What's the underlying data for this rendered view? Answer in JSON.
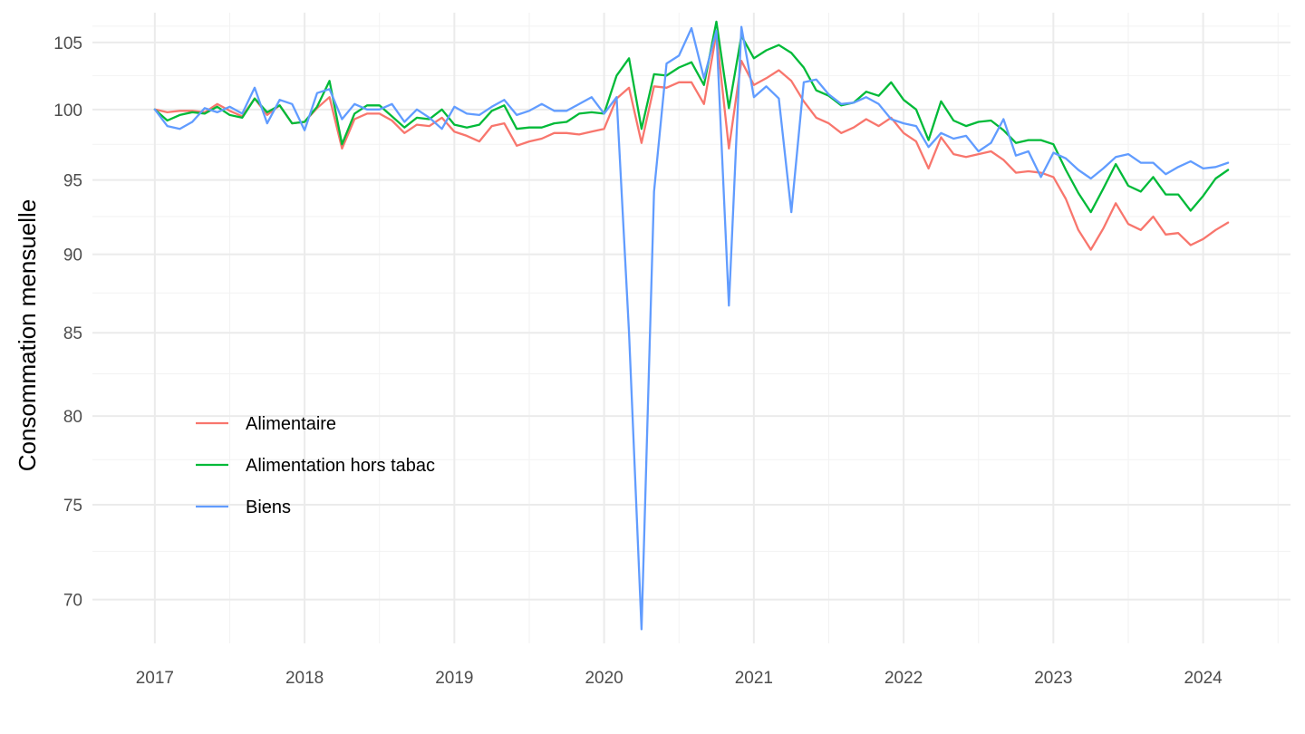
{
  "chart_data": {
    "type": "line",
    "ylabel": "Consommation mensuelle",
    "xlabel": "",
    "title": "",
    "y_scale": "log",
    "ylim": [
      67.8,
      107.3
    ],
    "xlim": [
      "2016-08",
      "2024-08"
    ],
    "y_ticks": [
      70,
      75,
      80,
      85,
      90,
      95,
      100,
      105
    ],
    "x_ticks": [
      "2017",
      "2018",
      "2019",
      "2020",
      "2021",
      "2022",
      "2023",
      "2024"
    ],
    "grid": true,
    "legend_position": "inside-left",
    "x": [
      "2017-01",
      "2017-02",
      "2017-03",
      "2017-04",
      "2017-05",
      "2017-06",
      "2017-07",
      "2017-08",
      "2017-09",
      "2017-10",
      "2017-11",
      "2017-12",
      "2018-01",
      "2018-02",
      "2018-03",
      "2018-04",
      "2018-05",
      "2018-06",
      "2018-07",
      "2018-08",
      "2018-09",
      "2018-10",
      "2018-11",
      "2018-12",
      "2019-01",
      "2019-02",
      "2019-03",
      "2019-04",
      "2019-05",
      "2019-06",
      "2019-07",
      "2019-08",
      "2019-09",
      "2019-10",
      "2019-11",
      "2019-12",
      "2020-01",
      "2020-02",
      "2020-03",
      "2020-04",
      "2020-05",
      "2020-06",
      "2020-07",
      "2020-08",
      "2020-09",
      "2020-10",
      "2020-11",
      "2020-12",
      "2021-01",
      "2021-02",
      "2021-03",
      "2021-04",
      "2021-05",
      "2021-06",
      "2021-07",
      "2021-08",
      "2021-09",
      "2021-10",
      "2021-11",
      "2021-12",
      "2022-01",
      "2022-02",
      "2022-03",
      "2022-04",
      "2022-05",
      "2022-06",
      "2022-07",
      "2022-08",
      "2022-09",
      "2022-10",
      "2022-11",
      "2022-12",
      "2023-01",
      "2023-02",
      "2023-03",
      "2023-04",
      "2023-05",
      "2023-06",
      "2023-07",
      "2023-08",
      "2023-09",
      "2023-10",
      "2023-11",
      "2023-12",
      "2024-01",
      "2024-02",
      "2024-03"
    ],
    "series": [
      {
        "name": "Alimentaire",
        "color": "#F8766D",
        "values": [
          100.0,
          99.8,
          99.9,
          99.9,
          99.8,
          100.4,
          99.9,
          99.5,
          100.8,
          99.6,
          100.3,
          99.0,
          99.1,
          100.1,
          100.9,
          97.2,
          99.3,
          99.7,
          99.7,
          99.2,
          98.3,
          98.9,
          98.8,
          99.4,
          98.4,
          98.1,
          97.7,
          98.8,
          99.0,
          97.4,
          97.7,
          97.9,
          98.3,
          98.3,
          98.2,
          98.4,
          98.6,
          100.8,
          101.6,
          97.6,
          101.7,
          101.6,
          102.0,
          102.0,
          100.4,
          105.7,
          97.2,
          103.6,
          101.8,
          102.3,
          102.9,
          102.1,
          100.6,
          99.4,
          99.0,
          98.3,
          98.7,
          99.3,
          98.8,
          99.4,
          98.3,
          97.7,
          95.8,
          98.0,
          96.8,
          96.6,
          96.8,
          97.0,
          96.4,
          95.5,
          95.6,
          95.5,
          95.2,
          93.7,
          91.6,
          90.3,
          91.7,
          93.4,
          92.0,
          91.6,
          92.5,
          91.3,
          91.4,
          90.6,
          91.0,
          91.6,
          92.1
        ]
      },
      {
        "name": "Alimentation hors tabac",
        "color": "#00BA38",
        "values": [
          100.0,
          99.2,
          99.6,
          99.8,
          99.7,
          100.2,
          99.6,
          99.4,
          100.8,
          99.8,
          100.3,
          99.0,
          99.1,
          100.2,
          102.1,
          97.5,
          99.7,
          100.3,
          100.3,
          99.5,
          98.7,
          99.4,
          99.3,
          100.0,
          98.9,
          98.7,
          98.9,
          99.9,
          100.3,
          98.6,
          98.7,
          98.7,
          99.0,
          99.1,
          99.7,
          99.8,
          99.7,
          102.5,
          103.8,
          98.6,
          102.6,
          102.5,
          103.1,
          103.5,
          101.8,
          106.6,
          100.1,
          105.5,
          103.8,
          104.4,
          104.8,
          104.2,
          103.1,
          101.4,
          101.0,
          100.3,
          100.5,
          101.3,
          101.0,
          102.0,
          100.7,
          100.0,
          97.8,
          100.6,
          99.2,
          98.8,
          99.1,
          99.2,
          98.5,
          97.6,
          97.8,
          97.8,
          97.5,
          95.7,
          94.1,
          92.8,
          94.4,
          96.1,
          94.6,
          94.2,
          95.2,
          94.0,
          94.0,
          92.9,
          93.9,
          95.1,
          95.7
        ]
      },
      {
        "name": "Biens",
        "color": "#619CFF",
        "values": [
          100.0,
          98.8,
          98.6,
          99.1,
          100.1,
          99.8,
          100.2,
          99.7,
          101.6,
          99.0,
          100.7,
          100.4,
          98.5,
          101.2,
          101.5,
          99.3,
          100.4,
          100.0,
          100.0,
          100.4,
          99.1,
          100.0,
          99.4,
          98.6,
          100.2,
          99.7,
          99.6,
          100.2,
          100.7,
          99.6,
          99.9,
          100.4,
          99.9,
          99.9,
          100.4,
          100.9,
          99.7,
          100.9,
          85.0,
          68.5,
          94.2,
          103.4,
          104.0,
          106.1,
          102.3,
          105.9,
          86.7,
          106.2,
          100.9,
          101.7,
          100.8,
          92.8,
          102.0,
          102.2,
          101.1,
          100.4,
          100.5,
          100.9,
          100.4,
          99.3,
          99.0,
          98.8,
          97.3,
          98.3,
          97.9,
          98.1,
          97.0,
          97.6,
          99.3,
          96.7,
          97.0,
          95.2,
          96.9,
          96.5,
          95.7,
          95.1,
          95.8,
          96.6,
          96.8,
          96.2,
          96.2,
          95.4,
          95.9,
          96.3,
          95.8,
          95.9,
          96.2
        ]
      }
    ]
  }
}
